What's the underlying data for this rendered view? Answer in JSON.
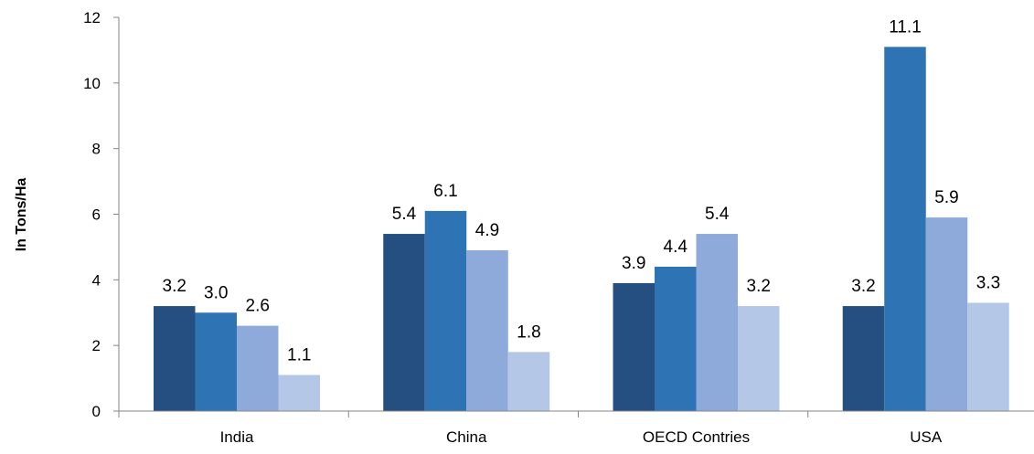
{
  "chart_data": {
    "type": "bar",
    "title": "",
    "xlabel": "",
    "ylabel": "In Tons/Ha",
    "ylim": [
      0,
      12
    ],
    "yticks": [
      0,
      2,
      4,
      6,
      8,
      10,
      12
    ],
    "grid": false,
    "legend": "none",
    "categories": [
      "India",
      "China",
      "OECD Contries",
      "USA"
    ],
    "series": [
      {
        "color": "#254f80",
        "values": [
          3.2,
          5.4,
          3.9,
          3.2
        ],
        "labels": [
          "3.2",
          "5.4",
          "3.9",
          "3.2"
        ]
      },
      {
        "color": "#2e74b5",
        "values": [
          3.0,
          6.1,
          4.4,
          11.1
        ],
        "labels": [
          "3.0",
          "6.1",
          "4.4",
          "11.1"
        ]
      },
      {
        "color": "#8eaadb",
        "values": [
          2.6,
          4.9,
          5.4,
          5.9
        ],
        "labels": [
          "2.6",
          "4.9",
          "5.4",
          "5.9"
        ]
      },
      {
        "color": "#b4c7e7",
        "values": [
          1.1,
          1.8,
          3.2,
          3.3
        ],
        "labels": [
          "1.1",
          "1.8",
          "3.2",
          "3.3"
        ]
      }
    ]
  }
}
